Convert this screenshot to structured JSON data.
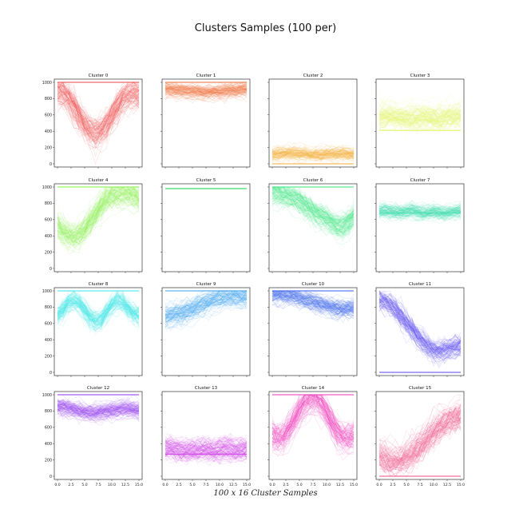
{
  "figure": {
    "title": "Clusters Samples (100 per)",
    "caption": "100 x 16 Cluster Samples"
  },
  "chart_data": {
    "type": "line",
    "samples_per_cluster": 100,
    "points_per_sample": 16,
    "x": [
      0,
      1,
      2,
      3,
      4,
      5,
      6,
      7,
      8,
      9,
      10,
      11,
      12,
      13,
      14,
      15
    ],
    "ylim": [
      0,
      1000
    ],
    "xlim": [
      0,
      15
    ],
    "y_ticks": [
      0,
      200,
      400,
      600,
      800,
      1000
    ],
    "x_ticks": [
      0.0,
      2.5,
      5.0,
      7.5,
      10.0,
      12.5,
      15.0
    ],
    "x_tick_labels": [
      "0.0",
      "2.5",
      "5.0",
      "7.5",
      "10.0",
      "12.5",
      "15.0"
    ],
    "clusters": [
      {
        "name": "Cluster 0",
        "color": "#f05a5a",
        "highlight_value": 1000,
        "mean": [
          870,
          860,
          800,
          700,
          580,
          470,
          400,
          370,
          400,
          470,
          580,
          700,
          790,
          840,
          850,
          830
        ],
        "spread": 120
      },
      {
        "name": "Cluster 1",
        "color": "#f07a4a",
        "highlight_value": 1000,
        "mean": [
          920,
          915,
          905,
          900,
          895,
          890,
          890,
          880,
          880,
          885,
          885,
          890,
          900,
          905,
          910,
          920
        ],
        "spread": 60
      },
      {
        "name": "Cluster 2",
        "color": "#f5b54a",
        "highlight_value": 0,
        "mean": [
          120,
          130,
          140,
          140,
          135,
          130,
          130,
          120,
          120,
          120,
          130,
          130,
          130,
          140,
          130,
          120
        ],
        "spread": 60
      },
      {
        "name": "Cluster 3",
        "color": "#e3f56a",
        "highlight_value": 410,
        "mean": [
          560,
          580,
          590,
          570,
          560,
          560,
          560,
          560,
          570,
          560,
          550,
          550,
          560,
          570,
          580,
          590
        ],
        "spread": 100
      },
      {
        "name": "Cluster 4",
        "color": "#90f25a",
        "highlight_value": 1000,
        "mean": [
          520,
          460,
          410,
          390,
          420,
          480,
          570,
          670,
          770,
          850,
          890,
          910,
          920,
          920,
          910,
          870
        ],
        "spread": 120
      },
      {
        "name": "Cluster 5",
        "color": "#4ae07a",
        "highlight_value": 980,
        "mean": [
          980,
          980,
          980,
          980,
          980,
          980,
          980,
          980,
          980,
          980,
          980,
          980,
          980,
          980,
          980,
          980
        ],
        "spread": 0
      },
      {
        "name": "Cluster 6",
        "color": "#4ae88a",
        "highlight_value": 1000,
        "mean": [
          930,
          920,
          900,
          880,
          860,
          820,
          770,
          720,
          680,
          640,
          600,
          560,
          520,
          510,
          560,
          640
        ],
        "spread": 100
      },
      {
        "name": "Cluster 7",
        "color": "#4ae0b0",
        "highlight_value": 680,
        "mean": [
          700,
          710,
          700,
          690,
          690,
          700,
          710,
          690,
          680,
          690,
          700,
          690,
          680,
          690,
          700,
          710
        ],
        "spread": 60
      },
      {
        "name": "Cluster 8",
        "color": "#4ae8ea",
        "highlight_value": 1000,
        "mean": [
          700,
          770,
          850,
          880,
          850,
          760,
          670,
          630,
          650,
          730,
          830,
          880,
          860,
          790,
          720,
          690
        ],
        "spread": 90
      },
      {
        "name": "Cluster 9",
        "color": "#4aa8f0",
        "highlight_value": 1000,
        "mean": [
          690,
          700,
          720,
          730,
          750,
          780,
          810,
          840,
          870,
          900,
          920,
          930,
          940,
          940,
          930,
          930
        ],
        "spread": 90
      },
      {
        "name": "Cluster 10",
        "color": "#4a70ee",
        "highlight_value": 1000,
        "mean": [
          960,
          960,
          950,
          940,
          930,
          920,
          900,
          880,
          860,
          840,
          820,
          800,
          790,
          780,
          780,
          790
        ],
        "spread": 80
      },
      {
        "name": "Cluster 11",
        "color": "#6a5af0",
        "highlight_value": 0,
        "mean": [
          880,
          860,
          820,
          760,
          680,
          600,
          520,
          440,
          370,
          310,
          270,
          250,
          260,
          280,
          300,
          320
        ],
        "spread": 100
      },
      {
        "name": "Cluster 12",
        "color": "#9a4af0",
        "highlight_value": 1000,
        "mean": [
          860,
          850,
          840,
          820,
          800,
          790,
          780,
          780,
          790,
          800,
          810,
          820,
          830,
          830,
          820,
          810
        ],
        "spread": 70
      },
      {
        "name": "Cluster 13",
        "color": "#d04ae8",
        "highlight_value": 270,
        "mean": [
          330,
          340,
          330,
          320,
          310,
          320,
          320,
          330,
          320,
          310,
          320,
          330,
          330,
          320,
          320,
          330
        ],
        "spread": 90
      },
      {
        "name": "Cluster 14",
        "color": "#f04ac0",
        "highlight_value": 1000,
        "mean": [
          480,
          460,
          480,
          560,
          680,
          800,
          900,
          950,
          940,
          880,
          770,
          640,
          530,
          460,
          450,
          480
        ],
        "spread": 120
      },
      {
        "name": "Cluster 15",
        "color": "#f06090",
        "highlight_value": 0,
        "mean": [
          260,
          220,
          200,
          200,
          210,
          240,
          290,
          350,
          420,
          490,
          560,
          620,
          670,
          710,
          740,
          760
        ],
        "spread": 130
      }
    ]
  }
}
